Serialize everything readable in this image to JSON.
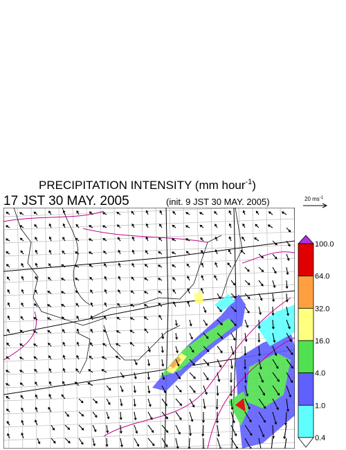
{
  "title": {
    "text": "PRECIPITATION INTENSITY (mm hour",
    "superscript": "-1",
    "close": ")"
  },
  "subtitle": {
    "time": "17 JST 30 MAY. 2005",
    "init": "(init. 9 JST 30 MAY. 2005)"
  },
  "vector_key": {
    "text": "20 ms",
    "superscript": "-1"
  },
  "colorbar": {
    "labels": [
      "100.0",
      "64.0",
      "32.0",
      "16.0",
      "4.0",
      "1.0",
      "0.4"
    ],
    "colors": [
      "#e00000",
      "#ffa040",
      "#ffff80",
      "#50e050",
      "#6060ff",
      "#60ffff"
    ],
    "over_color": "#b030e0",
    "under_color": "#ffffff"
  }
}
